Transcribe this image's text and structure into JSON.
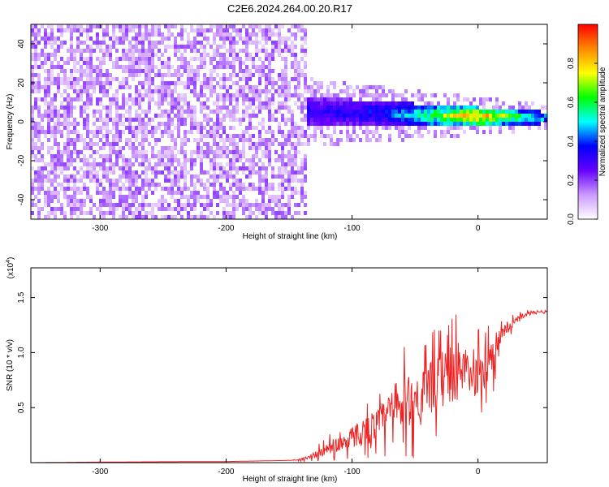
{
  "title": "C2E6.2024.264.00.20.R17",
  "chart_data": [
    {
      "type": "heatmap",
      "xlabel": "Height of straight line (km)",
      "ylabel": "Frequency (Hz)",
      "xlim": [
        -355,
        55
      ],
      "ylim": [
        -50,
        50
      ],
      "x_ticks": [
        -300,
        -200,
        -100,
        0
      ],
      "y_ticks": [
        -40,
        -20,
        0,
        20,
        40
      ],
      "colorbar": {
        "label": "Normalized spectral amplitude",
        "range": [
          0,
          1
        ],
        "ticks": [
          0.0,
          0.2,
          0.4,
          0.6,
          0.8
        ],
        "colormap": [
          "#ffffff",
          "#cc99ff",
          "#6600ff",
          "#0000ff",
          "#00ffff",
          "#00ff00",
          "#ffff00",
          "#ff8800",
          "#ff0000"
        ]
      },
      "regions": [
        {
          "name": "noise",
          "x_range": [
            -355,
            -137
          ],
          "freq_range": [
            -50,
            50
          ],
          "amplitude_range": [
            0.05,
            0.2
          ]
        },
        {
          "name": "signal",
          "x_range": [
            -137,
            55
          ],
          "freq_center_start": 5,
          "freq_center_end": 2,
          "freq_halfwidth_start": 8,
          "freq_halfwidth_end": 3,
          "amplitude_peak": 0.95,
          "amplitude_peak_x": 0
        }
      ],
      "grid": false
    },
    {
      "type": "line",
      "xlabel": "Height of straight line (km)",
      "ylabel": "SNR (10 * v/v)",
      "y_multiplier": "(x10",
      "y_multiplier_exp": "4",
      "y_multiplier_close": ")",
      "xlim": [
        -355,
        55
      ],
      "ylim": [
        0,
        17700
      ],
      "x_ticks": [
        -300,
        -200,
        -100,
        0
      ],
      "y_ticks": [
        5000,
        10000,
        15000
      ],
      "y_tick_labels": [
        "0.5",
        "1.0",
        "1.5"
      ],
      "series": [
        {
          "color": "#ee2222",
          "x": [
            -355,
            -300,
            -250,
            -200,
            -150,
            -140,
            -130,
            -120,
            -110,
            -100,
            -90,
            -80,
            -70,
            -60,
            -50,
            -40,
            -30,
            -20,
            -10,
            -5,
            0,
            10,
            20,
            30,
            40,
            55
          ],
          "y": [
            0,
            50,
            80,
            100,
            200,
            300,
            700,
            1200,
            1700,
            2300,
            2900,
            3400,
            4400,
            5200,
            5800,
            6600,
            7400,
            8300,
            8600,
            7400,
            8000,
            9700,
            11700,
            13000,
            13600,
            13800
          ],
          "noise_amplitude": [
            0,
            0,
            0,
            0,
            0,
            200,
            600,
            1200,
            1600,
            2200,
            2800,
            3400,
            4400,
            5400,
            5400,
            5000,
            5600,
            6800,
            4000,
            3600,
            4200,
            4800,
            1400,
            600,
            300,
            250
          ]
        }
      ],
      "grid": false
    }
  ]
}
